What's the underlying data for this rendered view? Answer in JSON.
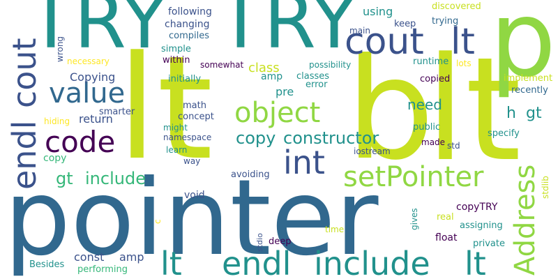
{
  "palette": {
    "background": "#ffffff",
    "dark_purple": "#440154",
    "indigo": "#3b528b",
    "blue": "#31688e",
    "teal": "#21918c",
    "green": "#35b779",
    "lime": "#90d743",
    "yellow_green": "#c8e020",
    "yellow": "#fde725"
  },
  "words": [
    "pointer",
    "lt",
    "TRY",
    "TRY",
    "b",
    "lt",
    "p",
    "cout",
    "lt",
    "value",
    "object",
    "code",
    "endl",
    "cout",
    "int",
    "setPointer",
    "Address",
    "lt",
    "endl",
    "include",
    "lt",
    "copy",
    "constructor",
    "gt",
    "include",
    "h",
    "gt",
    "need",
    "class",
    "following",
    "changing",
    "compiles",
    "simple",
    "within",
    "using",
    "keep",
    "discovered",
    "trying",
    "main",
    "wrong",
    "necessary",
    "Copying",
    "somewhat",
    "possibility",
    "runtime",
    "lots",
    "implement",
    "copied",
    "recently",
    "amp",
    "classes",
    "error",
    "initially",
    "pre",
    "math",
    "smarter",
    "return",
    "concept",
    "might",
    "namespace",
    "hiding",
    "public",
    "specify",
    "made",
    "std",
    "copy",
    "learn",
    "way",
    "iostream",
    "avoiding",
    "stdlib",
    "void",
    "copyTRY",
    "c",
    "real",
    "assigning",
    "gives",
    "time",
    "stdio",
    "deep",
    "float",
    "private",
    "const",
    "amp",
    "Besides",
    "performing"
  ]
}
